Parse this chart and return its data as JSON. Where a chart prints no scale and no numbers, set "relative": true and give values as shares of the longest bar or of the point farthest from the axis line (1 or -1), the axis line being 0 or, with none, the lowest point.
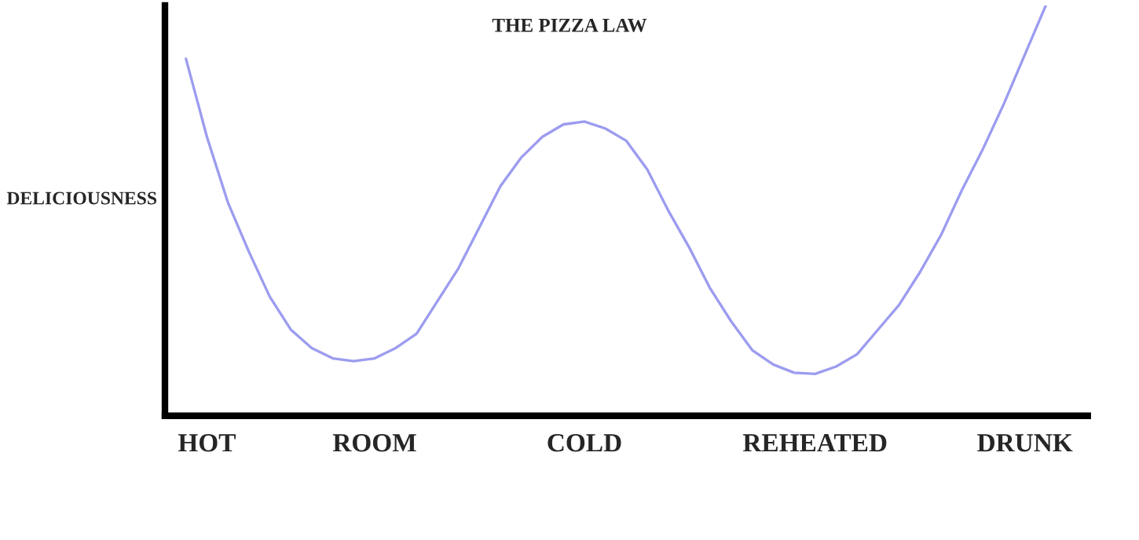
{
  "chart_data": {
    "type": "line",
    "title": "THE PIZZA LAW",
    "ylabel": "DELICIOUSNESS",
    "relative": true,
    "categories": [
      null,
      "HOT",
      null,
      null,
      null,
      null,
      null,
      null,
      null,
      "ROOM",
      null,
      null,
      null,
      null,
      null,
      null,
      null,
      null,
      null,
      "COLD",
      null,
      null,
      null,
      null,
      null,
      null,
      null,
      null,
      null,
      null,
      "REHEATED",
      null,
      null,
      null,
      null,
      null,
      null,
      null,
      null,
      null,
      "DRUNK",
      null
    ],
    "series": [
      {
        "color": "#9c9cf0",
        "values": [
          0.87,
          0.68,
          0.52,
          0.4,
          0.29,
          0.21,
          0.165,
          0.14,
          0.133,
          0.14,
          0.165,
          0.2,
          0.28,
          0.36,
          0.46,
          0.56,
          0.63,
          0.68,
          0.71,
          0.717,
          0.7,
          0.67,
          0.6,
          0.5,
          0.41,
          0.31,
          0.23,
          0.16,
          0.125,
          0.105,
          0.102,
          0.12,
          0.15,
          0.21,
          0.27,
          0.35,
          0.44,
          0.55,
          0.65,
          0.76,
          0.88,
          1.0
        ]
      }
    ],
    "grid": false,
    "legend": false,
    "marker": "none",
    "line_style": "solid"
  }
}
